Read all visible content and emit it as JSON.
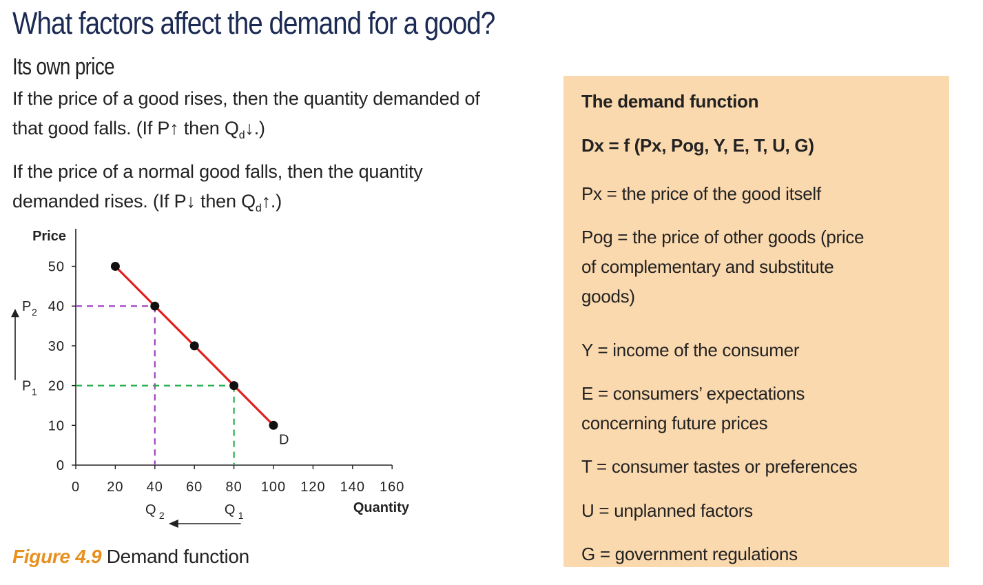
{
  "heading": "What factors affect the demand for a good?",
  "subheading": "Its own price",
  "para1": {
    "line1": "If the price of a good rises, then the quantity demanded of",
    "line2_a": "that good falls. (If P",
    "line2_arrow1": "↑",
    "line2_b": " then Q",
    "line2_sub": "d",
    "line2_arrow2": "↓",
    "line2_c": ".)"
  },
  "para2": {
    "line1": "If the price of a normal good falls, then the quantity",
    "line2_a": "demanded rises. (If P",
    "line2_arrow1": "↓",
    "line2_b": " then Q",
    "line2_sub": "d",
    "line2_arrow2": "↑",
    "line2_c": ".)"
  },
  "chart_data": {
    "type": "line",
    "ylabel": "Price",
    "xlabel": "Quantity",
    "xlim": [
      0,
      160
    ],
    "ylim": [
      0,
      50
    ],
    "xticks": [
      0,
      20,
      40,
      60,
      80,
      100,
      120,
      140,
      160
    ],
    "yticks": [
      0,
      10,
      20,
      30,
      40,
      50
    ],
    "series": [
      {
        "name": "D",
        "color": "#e0201e",
        "points": [
          [
            20,
            50
          ],
          [
            40,
            40
          ],
          [
            60,
            30
          ],
          [
            80,
            20
          ],
          [
            100,
            10
          ]
        ]
      }
    ],
    "guides": [
      {
        "color": "#a040c0",
        "x": 40,
        "y": 40,
        "xlabel": "Q",
        "xlabel_sub": "2",
        "ylabel": "P",
        "ylabel_sub": "2"
      },
      {
        "color": "#22b04a",
        "x": 80,
        "y": 20,
        "xlabel": "Q",
        "xlabel_sub": "1",
        "ylabel": "P",
        "ylabel_sub": "1"
      }
    ]
  },
  "caption": {
    "figure": "Figure 4.9",
    "text": " Demand function"
  },
  "box": {
    "title": "The demand function",
    "formula": "Dx = f (Px, Pog, Y, E, T, U, G)",
    "defs": [
      "Px = the price of the good itself",
      "Pog = the price of other goods (price\nof complementary and substitute\ngoods)",
      "Y = income of the consumer",
      "E = consumers’ expectations\nconcerning future prices",
      "T = consumer tastes or preferences",
      "U = unplanned factors",
      "G = government regulations"
    ],
    "bg": "#fbd9ae"
  }
}
